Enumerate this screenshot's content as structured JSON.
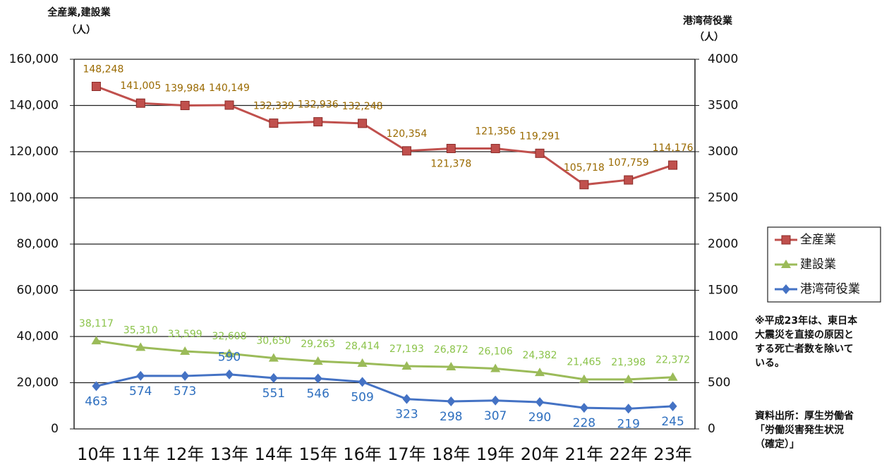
{
  "chart_data": {
    "type": "line",
    "y_label": [
      "全産業,建設業",
      "（人）"
    ],
    "y2_label": [
      "港湾荷役業",
      "（人）"
    ],
    "categories": [
      "10年",
      "11年",
      "12年",
      "13年",
      "14年",
      "15年",
      "16年",
      "17年",
      "18年",
      "19年",
      "20年",
      "21年",
      "22年",
      "23年"
    ],
    "series": [
      {
        "name": "全産業",
        "color": "#c0504d",
        "marker": "square",
        "label_color": "#9a6a00",
        "values": [
          148248,
          141005,
          139984,
          140149,
          132339,
          132936,
          132248,
          120354,
          121378,
          121356,
          119291,
          105718,
          107759,
          114176
        ],
        "value_labels": [
          "148,248",
          "141,005",
          "139,984",
          "140,149",
          "132,339",
          "132,936",
          "132,248",
          "120,354",
          "121,378",
          "121,356",
          "119,291",
          "105,718",
          "107,759",
          "114,176"
        ]
      },
      {
        "name": "建設業",
        "color": "#9bbb59",
        "marker": "triangle",
        "label_color": "#8bc34a",
        "values": [
          38117,
          35310,
          33599,
          32608,
          30650,
          29263,
          28414,
          27193,
          26872,
          26106,
          24382,
          21465,
          21398,
          22372
        ],
        "value_labels": [
          "38,117",
          "35,310",
          "33,599",
          "32,608",
          "30,650",
          "29,263",
          "28,414",
          "27,193",
          "26,872",
          "26,106",
          "24,382",
          "21,465",
          "21,398",
          "22,372"
        ]
      },
      {
        "name": "港湾荷役業",
        "color": "#4472c4",
        "marker": "diamond",
        "label_color": "#2e6fbf",
        "axis": "y2",
        "values": [
          463,
          574,
          573,
          590,
          551,
          546,
          509,
          323,
          298,
          307,
          290,
          228,
          219,
          245
        ]
      }
    ],
    "ylim": [
      0,
      160000
    ],
    "yticks": [
      0,
      {
        "value": 20000,
        "label": "20,000"
      },
      {
        "value": 40000,
        "label": "40,000"
      },
      {
        "value": 60000,
        "label": "60,000"
      },
      {
        "value": 80000,
        "label": "80,000"
      },
      {
        "value": 100000,
        "label": "100,000"
      },
      {
        "value": 120000,
        "label": "120,000"
      },
      {
        "value": 140000,
        "label": "140,000"
      },
      {
        "value": 160000,
        "label": "160,000"
      }
    ],
    "y2lim": [
      0,
      4000
    ],
    "y2ticks": [
      0,
      500,
      1000,
      1500,
      2000,
      2500,
      3000,
      3500,
      4000
    ],
    "grid": true,
    "legend": "right",
    "annotations": [
      [
        "※平成23年は、東日本",
        "大震災を直接の原因と",
        "する死亡者数を除いて",
        "いる。"
      ],
      [
        "資料出所：厚生労働省",
        "「労働災害発生状況",
        "（確定）」"
      ]
    ]
  }
}
